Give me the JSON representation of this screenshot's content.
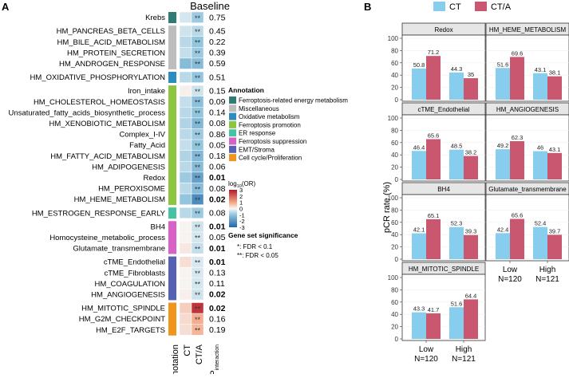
{
  "panels": {
    "a": "A",
    "b": "B"
  },
  "colors": {
    "ct": "#87cdee",
    "cta": "#c8576f",
    "strip_bg": "#e6e6e6",
    "pos_high": "#b2182b",
    "neg_high": "#2166ac"
  },
  "heatmap": {
    "title": "Baseline",
    "col_labels": [
      "Annotation",
      "CT",
      "CT/A",
      "P"
    ],
    "col_label_sub": "interaction",
    "annotation_legend": {
      "title": "Annotation",
      "items": [
        {
          "label": "Ferroptosis-related energy metabolism",
          "color": "#2e7c74"
        },
        {
          "label": "Miscellaneous",
          "color": "#bdbdbd"
        },
        {
          "label": "Oxidative metabolism",
          "color": "#2b8cbe"
        },
        {
          "label": "Ferroptosis promotion",
          "color": "#8cc63f"
        },
        {
          "label": "ER response",
          "color": "#45c3a4"
        },
        {
          "label": "Ferroptosis suppression",
          "color": "#d960c4"
        },
        {
          "label": "EMT/Stroma",
          "color": "#5561b2"
        },
        {
          "label": "Cell cycle/Proliferation",
          "color": "#f0941b"
        }
      ]
    },
    "color_legend": {
      "title_prefix": "log",
      "title_sub": "10",
      "title_suffix": "(OR)",
      "ticks": [
        "3",
        "2",
        "1",
        "0",
        "-1",
        "-2",
        "-3"
      ]
    },
    "significance_legend": {
      "title": "Gene set significance",
      "items": [
        "*: FDR < 0.1",
        "**: FDR < 0.05"
      ]
    },
    "rows": [
      {
        "name": "Krebs",
        "group": 0,
        "ct": -0.35,
        "cta": -0.9,
        "stars": "**",
        "p": "0.75",
        "bold": false
      },
      {
        "name": "HM_PANCREAS_BETA_CELLS",
        "group": 1,
        "ct": -0.4,
        "cta": -0.6,
        "stars": "**",
        "p": "0.45",
        "bold": false
      },
      {
        "name": "HM_BILE_ACID_METABOLISM",
        "group": 1,
        "ct": -0.6,
        "cta": -1.0,
        "stars": "**",
        "p": "0.22",
        "bold": false
      },
      {
        "name": "HM_PROTEIN_SECRETION",
        "group": 1,
        "ct": -0.5,
        "cta": -0.9,
        "stars": "**",
        "p": "0.39",
        "bold": false
      },
      {
        "name": "HM_ANDROGEN_RESPONSE",
        "group": 1,
        "ct": -1.2,
        "cta": -1.2,
        "stars": "**",
        "p": "0.59",
        "bold": false
      },
      {
        "name": "HM_OXIDATIVE_PHOSPHORYLATION",
        "group": 2,
        "ct": -0.6,
        "cta": -1.0,
        "stars": "**",
        "p": "0.51",
        "bold": false
      },
      {
        "name": "Iron_intake",
        "group": 3,
        "ct": 0.1,
        "cta": -0.4,
        "stars": "**",
        "p": "0.15",
        "bold": false
      },
      {
        "name": "HM_CHOLESTEROL_HOMEOSTASIS",
        "group": 3,
        "ct": -0.5,
        "cta": -1.1,
        "stars": "**",
        "p": "0.09",
        "bold": false
      },
      {
        "name": "Unsaturated_fatty_acids_biosynthetic_process",
        "group": 3,
        "ct": -0.6,
        "cta": -1.0,
        "stars": "**",
        "p": "0.14",
        "bold": false
      },
      {
        "name": "HM_XENOBIOTIC_METABOLISM",
        "group": 3,
        "ct": -0.7,
        "cta": -1.3,
        "stars": "**",
        "p": "0.08",
        "bold": false
      },
      {
        "name": "Complex_I-IV",
        "group": 3,
        "ct": -0.6,
        "cta": -0.9,
        "stars": "**",
        "p": "0.86",
        "bold": false
      },
      {
        "name": "Fatty_Acid",
        "group": 3,
        "ct": -0.5,
        "cta": -1.0,
        "stars": "**",
        "p": "0.05",
        "bold": false
      },
      {
        "name": "HM_FATTY_ACID_METABOLISM",
        "group": 3,
        "ct": -0.7,
        "cta": -1.3,
        "stars": "**",
        "p": "0.18",
        "bold": false
      },
      {
        "name": "HM_ADIPOGENESIS",
        "group": 3,
        "ct": -0.6,
        "cta": -1.2,
        "stars": "**",
        "p": "0.06",
        "bold": false
      },
      {
        "name": "Redox",
        "group": 3,
        "ct": -0.9,
        "cta": -1.8,
        "stars": "**",
        "p": "0.01",
        "bold": true
      },
      {
        "name": "HM_PEROXISOME",
        "group": 3,
        "ct": -0.6,
        "cta": -1.2,
        "stars": "**",
        "p": "0.08",
        "bold": false
      },
      {
        "name": "HM_HEME_METABOLISM",
        "group": 3,
        "ct": -1.0,
        "cta": -2.2,
        "stars": "**",
        "p": "0.02",
        "bold": true
      },
      {
        "name": "HM_ESTROGEN_RESPONSE_EARLY",
        "group": 4,
        "ct": -0.6,
        "cta": -0.9,
        "stars": "**",
        "p": "0.08",
        "bold": false
      },
      {
        "name": "BH4",
        "group": 5,
        "ct": 0.05,
        "cta": -0.4,
        "stars": "**",
        "p": "0.01",
        "bold": true
      },
      {
        "name": "Homocysteine_metabolic_process",
        "group": 5,
        "ct": 0.05,
        "cta": -0.35,
        "stars": "**",
        "p": "0.05",
        "bold": false
      },
      {
        "name": "Glutamate_transmembrane",
        "group": 5,
        "ct": 0.2,
        "cta": -0.5,
        "stars": "**",
        "p": "0.01",
        "bold": true
      },
      {
        "name": "cTME_Endothelial",
        "group": 6,
        "ct": 0.3,
        "cta": -0.3,
        "stars": "**",
        "p": "0.01",
        "bold": true
      },
      {
        "name": "cTME_Fibroblasts",
        "group": 6,
        "ct": 0.05,
        "cta": -0.3,
        "stars": "**",
        "p": "0.13",
        "bold": false
      },
      {
        "name": "HM_COAGULATION",
        "group": 6,
        "ct": 0.05,
        "cta": -0.35,
        "stars": "**",
        "p": "0.11",
        "bold": false
      },
      {
        "name": "HM_ANGIOGENESIS",
        "group": 6,
        "ct": 0.1,
        "cta": -0.4,
        "stars": "**",
        "p": "0.02",
        "bold": true
      },
      {
        "name": "HM_MITOTIC_SPINDLE",
        "group": 7,
        "ct": 0.5,
        "cta": 2.6,
        "stars": "**",
        "p": "0.02",
        "bold": true
      },
      {
        "name": "HM_G2M_CHECKPOINT",
        "group": 7,
        "ct": 0.35,
        "cta": 0.9,
        "stars": "**",
        "p": "0.16",
        "bold": false
      },
      {
        "name": "HM_E2F_TARGETS",
        "group": 7,
        "ct": 0.3,
        "cta": 0.8,
        "stars": "**",
        "p": "0.19",
        "bold": false
      }
    ]
  },
  "chart_data": [
    {
      "type": "bar",
      "title": "Redox",
      "categories": [
        "Low",
        "High"
      ],
      "series": [
        {
          "name": "CT",
          "values": [
            50.8,
            44.3
          ]
        },
        {
          "name": "CT/A",
          "values": [
            71.2,
            35
          ]
        }
      ],
      "value_labels": [
        [
          "50.8",
          "44.3"
        ],
        [
          "71.2",
          "35"
        ]
      ],
      "ylabel": "pCR rate (%)",
      "ylim": [
        0,
        100
      ]
    },
    {
      "type": "bar",
      "title": "HM_HEME_METABOLISM",
      "categories": [
        "Low",
        "High"
      ],
      "series": [
        {
          "name": "CT",
          "values": [
            51.6,
            43.1
          ]
        },
        {
          "name": "CT/A",
          "values": [
            69.6,
            38.1
          ]
        }
      ],
      "value_labels": [
        [
          "51.6",
          "43.1"
        ],
        [
          "69.6",
          "38.1"
        ]
      ],
      "ylabel": "pCR rate (%)",
      "ylim": [
        0,
        100
      ]
    },
    {
      "type": "bar",
      "title": "cTME_Endothelial",
      "categories": [
        "Low",
        "High"
      ],
      "series": [
        {
          "name": "CT",
          "values": [
            46.4,
            48.5
          ]
        },
        {
          "name": "CT/A",
          "values": [
            65.6,
            38.2
          ]
        }
      ],
      "value_labels": [
        [
          "46.4",
          "48.5"
        ],
        [
          "65.6",
          "38.2"
        ]
      ],
      "ylabel": "pCR rate (%)",
      "ylim": [
        0,
        100
      ]
    },
    {
      "type": "bar",
      "title": "HM_ANGIOGENESIS",
      "categories": [
        "Low",
        "High"
      ],
      "series": [
        {
          "name": "CT",
          "values": [
            49.2,
            46
          ]
        },
        {
          "name": "CT/A",
          "values": [
            62.3,
            43.1
          ]
        }
      ],
      "value_labels": [
        [
          "49.2",
          "46"
        ],
        [
          "62.3",
          "43.1"
        ]
      ],
      "ylabel": "pCR rate (%)",
      "ylim": [
        0,
        100
      ]
    },
    {
      "type": "bar",
      "title": "BH4",
      "categories": [
        "Low",
        "High"
      ],
      "series": [
        {
          "name": "CT",
          "values": [
            42.1,
            52.3
          ]
        },
        {
          "name": "CT/A",
          "values": [
            65.1,
            39.3
          ]
        }
      ],
      "value_labels": [
        [
          "42.1",
          "52.3"
        ],
        [
          "65.1",
          "39.3"
        ]
      ],
      "ylabel": "pCR rate (%)",
      "ylim": [
        0,
        100
      ]
    },
    {
      "type": "bar",
      "title": "Glutamate_transmembrane",
      "categories": [
        "Low",
        "High"
      ],
      "series": [
        {
          "name": "CT",
          "values": [
            42.4,
            52.4
          ]
        },
        {
          "name": "CT/A",
          "values": [
            65.6,
            39.7
          ]
        }
      ],
      "value_labels": [
        [
          "42.4",
          "52.4"
        ],
        [
          "65.6",
          "39.7"
        ]
      ],
      "ylabel": "pCR rate (%)",
      "ylim": [
        0,
        100
      ]
    },
    {
      "type": "bar",
      "title": "HM_MITOTIC_SPINDLE",
      "categories": [
        "Low",
        "High"
      ],
      "series": [
        {
          "name": "CT",
          "values": [
            43.3,
            51.6
          ]
        },
        {
          "name": "CT/A",
          "values": [
            41.7,
            64.4
          ]
        }
      ],
      "value_labels": [
        [
          "43.3",
          "51.6"
        ],
        [
          "41.7",
          "64.4"
        ]
      ],
      "ylabel": "pCR rate (%)",
      "ylim": [
        0,
        100
      ]
    }
  ],
  "bar_panel": {
    "legend": [
      {
        "label": "CT",
        "color": "#87cdee"
      },
      {
        "label": "CT/A",
        "color": "#c8576f"
      }
    ],
    "ylabel": "pCR rate (%)",
    "yticks": [
      "0",
      "20",
      "40",
      "60",
      "80",
      "100"
    ],
    "xlabels": [
      {
        "top": "Low",
        "bottom": "N=120"
      },
      {
        "top": "High",
        "bottom": "N=121"
      }
    ]
  }
}
